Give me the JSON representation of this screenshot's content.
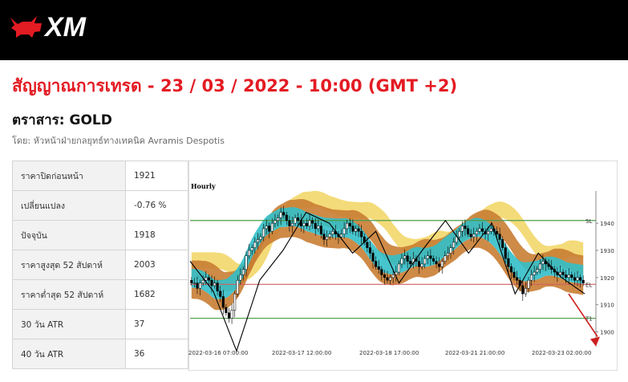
{
  "header": {
    "brand": "XM"
  },
  "title": "สัญญาณการเทรด - 23 / 03 / 2022 - 10:00 (GMT +2)",
  "instrument": "ตราสาร: GOLD",
  "byline": "โดย: หัวหน้าฝ่ายกลยุทธ์ทางเทคนิค Avramis Despotis",
  "stats": [
    {
      "label": "ราคาปิดก่อนหน้า",
      "value": "1921"
    },
    {
      "label": "เปลี่ยนแปลง",
      "value": "-0.76 %"
    },
    {
      "label": "ปัจจุบัน",
      "value": "1918"
    },
    {
      "label": "ราคาสูงสุด 52 สัปดาห์",
      "value": "2003"
    },
    {
      "label": "ราคาต่ำสุด 52 สัปดาห์",
      "value": "1682"
    },
    {
      "label": "30 วัน ATR",
      "value": "37"
    },
    {
      "label": "40 วัน ATR",
      "value": "36"
    }
  ],
  "chart_data": {
    "type": "candlestick",
    "timeframe": "Hourly",
    "ylim": [
      1890,
      1950
    ],
    "yticks": [
      1900,
      1910,
      1920,
      1930,
      1940
    ],
    "xticks": [
      "2022-03-16 07:00:00",
      "2022-03-17 12:00:00",
      "2022-03-18 17:00:00",
      "2022-03-21 21:00:00",
      "2022-03-23 02:00:00"
    ],
    "levels": [
      {
        "label": "SL",
        "value": 1941,
        "color": "#4a9e4a"
      },
      {
        "label": "EL",
        "value": 1917.5,
        "color": "#d06060"
      },
      {
        "label": "T1",
        "value": 1905,
        "color": "#4a9e4a"
      }
    ],
    "zigzag": [
      1926,
      1915,
      1893,
      1919,
      1930,
      1944,
      1940,
      1929,
      1937,
      1918,
      1930,
      1941,
      1929,
      1940,
      1914,
      1929,
      1920,
      1914
    ],
    "close": [
      1918,
      1918,
      1916,
      1918,
      1919,
      1920,
      1919,
      1917,
      1918,
      1915,
      1913,
      1909,
      1907,
      1905,
      1908,
      1914,
      1919,
      1921,
      1923,
      1928,
      1930,
      1931,
      1933,
      1934,
      1935,
      1938,
      1939,
      1937,
      1940,
      1941,
      1942,
      1944,
      1943,
      1941,
      1939,
      1940,
      1942,
      1941,
      1939,
      1940,
      1939,
      1941,
      1940,
      1938,
      1939,
      1936,
      1934,
      1935,
      1936,
      1937,
      1936,
      1935,
      1936,
      1938,
      1940,
      1939,
      1937,
      1938,
      1937,
      1935,
      1933,
      1931,
      1929,
      1926,
      1924,
      1923,
      1921,
      1920,
      1919,
      1920,
      1921,
      1922,
      1925,
      1927,
      1928,
      1926,
      1925,
      1927,
      1926,
      1924,
      1925,
      1927,
      1928,
      1927,
      1926,
      1925,
      1924,
      1926,
      1928,
      1929,
      1931,
      1933,
      1935,
      1937,
      1939,
      1938,
      1936,
      1935,
      1936,
      1937,
      1938,
      1937,
      1936,
      1937,
      1938,
      1937,
      1936,
      1934,
      1931,
      1927,
      1924,
      1922,
      1920,
      1919,
      1917,
      1914,
      1916,
      1919,
      1921,
      1922,
      1923,
      1925,
      1926,
      1925,
      1924,
      1923,
      1922,
      1921,
      1922,
      1921,
      1920,
      1921,
      1920,
      1919,
      1920,
      1919,
      1918
    ],
    "projection": [
      1914,
      1900
    ]
  }
}
